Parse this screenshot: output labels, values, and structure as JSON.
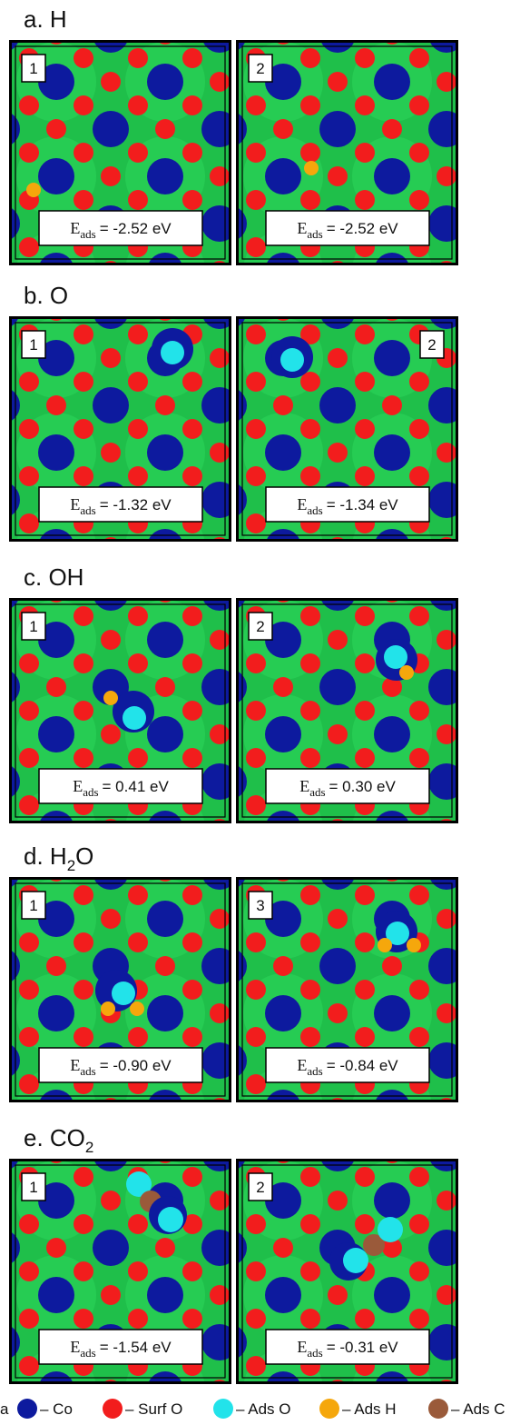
{
  "panels": [
    {
      "title": {
        "text": "a. H"
      },
      "items": [
        {
          "label": "1",
          "energy": {
            "symbol": "E",
            "subscript": "ads",
            "text": "= -2.52 eV"
          }
        },
        {
          "label": "2",
          "energy": {
            "symbol": "E",
            "subscript": "ads",
            "text": "= -2.52 eV"
          }
        }
      ]
    },
    {
      "title": {
        "text": "b. O"
      },
      "items": [
        {
          "label": "1",
          "energy": {
            "symbol": "E",
            "subscript": "ads",
            "text": "= -1.32 eV"
          }
        },
        {
          "label": "2",
          "energy": {
            "symbol": "E",
            "subscript": "ads",
            "text": "= -1.34 eV"
          }
        }
      ]
    },
    {
      "title": {
        "text": "c. OH"
      },
      "items": [
        {
          "label": "1",
          "energy": {
            "symbol": "E",
            "subscript": "ads",
            "text": "= 0.41 eV"
          }
        },
        {
          "label": "2",
          "energy": {
            "symbol": "E",
            "subscript": "ads",
            "text": "= 0.30 eV"
          }
        }
      ]
    },
    {
      "title": {
        "text": "d. H",
        "subscript": "2",
        "after": "O"
      },
      "items": [
        {
          "label": "1",
          "energy": {
            "symbol": "E",
            "subscript": "ads",
            "text": "= -0.90 eV"
          }
        },
        {
          "label": "3",
          "energy": {
            "symbol": "E",
            "subscript": "ads",
            "text": "= -0.84 eV"
          }
        }
      ]
    },
    {
      "title": {
        "text": "e. CO",
        "subscript": "2"
      },
      "items": [
        {
          "label": "1",
          "energy": {
            "symbol": "E",
            "subscript": "ads",
            "text": "= -1.54 eV"
          }
        },
        {
          "label": "2",
          "energy": {
            "symbol": "E",
            "subscript": "ads",
            "text": "= -0.31 eV"
          }
        }
      ]
    }
  ],
  "legend": {
    "cut_label": "a",
    "items": [
      {
        "label": "– Co",
        "color": "#0d1a9e"
      },
      {
        "label": "– Surf O",
        "color": "#f21d1d"
      },
      {
        "label": "– Ads O",
        "color": "#22e3ea"
      },
      {
        "label": "– Ads H",
        "color": "#f5a70c"
      },
      {
        "label": "– Ads C",
        "color": "#9a5a3a"
      }
    ]
  }
}
